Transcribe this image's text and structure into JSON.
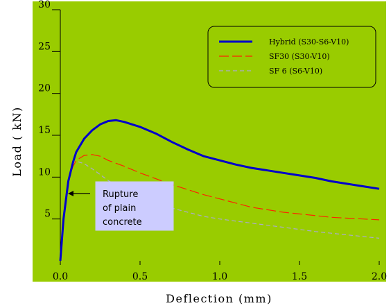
{
  "chart_data": {
    "type": "line",
    "title": "",
    "xlabel": "Deflection (mm)",
    "ylabel": "Load ( kN)",
    "xlim": [
      0,
      2.0
    ],
    "ylim": [
      0,
      30
    ],
    "x_ticks": [
      "0.0",
      "0.5",
      "1.0",
      "1.5",
      "2.0"
    ],
    "y_ticks": [
      "5",
      "10",
      "15",
      "20",
      "25",
      "30"
    ],
    "background": "#99cc00",
    "grid": false,
    "legend_position": "top-right",
    "series": [
      {
        "name": "Hybrid (S30-S6-V10)",
        "color": "#0000cc",
        "style": "solid",
        "x": [
          0,
          0.02,
          0.05,
          0.08,
          0.1,
          0.15,
          0.2,
          0.25,
          0.3,
          0.35,
          0.4,
          0.45,
          0.5,
          0.6,
          0.7,
          0.8,
          0.9,
          1.0,
          1.1,
          1.2,
          1.3,
          1.4,
          1.5,
          1.6,
          1.7,
          1.8,
          1.9,
          2.0
        ],
        "y": [
          0,
          5.0,
          9.5,
          11.8,
          13.0,
          14.6,
          15.6,
          16.3,
          16.7,
          16.8,
          16.6,
          16.3,
          16.0,
          15.2,
          14.2,
          13.3,
          12.5,
          12.0,
          11.5,
          11.1,
          10.8,
          10.5,
          10.2,
          9.9,
          9.5,
          9.2,
          8.9,
          8.6
        ]
      },
      {
        "name": "SF30 (S30-V10)",
        "color": "#ff2200",
        "style": "dashed",
        "x": [
          0,
          0.02,
          0.05,
          0.08,
          0.1,
          0.15,
          0.2,
          0.25,
          0.3,
          0.4,
          0.5,
          0.6,
          0.7,
          0.8,
          0.9,
          1.0,
          1.1,
          1.2,
          1.3,
          1.4,
          1.5,
          1.6,
          1.7,
          1.8,
          1.9,
          2.0
        ],
        "y": [
          0,
          5.0,
          9.5,
          11.3,
          12.0,
          12.6,
          12.7,
          12.5,
          12.0,
          11.3,
          10.5,
          9.8,
          9.1,
          8.5,
          7.9,
          7.4,
          6.9,
          6.4,
          6.1,
          5.8,
          5.6,
          5.4,
          5.2,
          5.1,
          5.0,
          4.9
        ]
      },
      {
        "name": "SF 6 (S6-V10)",
        "color": "#aaaacc",
        "style": "dashed",
        "x": [
          0,
          0.02,
          0.05,
          0.08,
          0.1,
          0.15,
          0.2,
          0.25,
          0.3,
          0.4,
          0.5,
          0.6,
          0.7,
          0.8,
          0.9,
          1.0,
          1.2,
          1.4,
          1.6,
          1.8,
          2.0
        ],
        "y": [
          0,
          5.0,
          9.5,
          11.5,
          11.9,
          11.6,
          11.0,
          10.3,
          9.6,
          8.5,
          7.6,
          6.9,
          6.3,
          5.8,
          5.3,
          5.0,
          4.5,
          4.0,
          3.5,
          3.1,
          2.7
        ]
      }
    ],
    "annotation": {
      "lines": [
        "Rupture",
        "of plain",
        "concrete"
      ],
      "points_to": {
        "x": 0.06,
        "y": 8.0
      }
    }
  }
}
